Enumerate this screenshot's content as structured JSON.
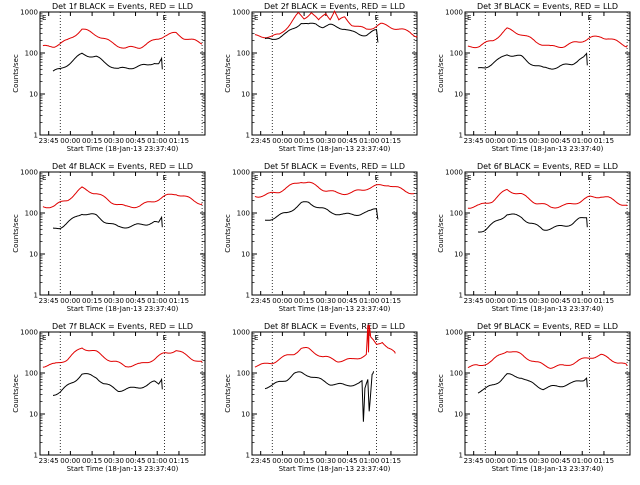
{
  "chart_data": [
    {
      "type": "line",
      "title": "Det 1f BLACK = Events, RED = LLD",
      "xlabel": "Start Time (18-Jan-13 23:37:40)",
      "ylabel": "Counts/sec",
      "yscale": "log",
      "ylim": [
        1,
        1000
      ],
      "yticks": [
        "1",
        "10",
        "100",
        "1000"
      ],
      "xticks": [
        "23:45",
        "00:00",
        "00:15",
        "00:30",
        "00:45",
        "01:00",
        "01:15"
      ],
      "xlim_minutes": [
        -14,
        100
      ],
      "dotted_lines": [
        0,
        72,
        98
      ],
      "marker": "E",
      "series": [
        {
          "color": "#e00000",
          "x": [
            -12,
            -4,
            5,
            15,
            25,
            35,
            45,
            55,
            65,
            72,
            80,
            85,
            92,
            98
          ],
          "y": [
            140,
            150,
            200,
            380,
            280,
            180,
            130,
            140,
            200,
            270,
            300,
            240,
            200,
            170
          ]
        },
        {
          "color": "#000000",
          "x": [
            -5,
            0,
            10,
            15,
            25,
            30,
            40,
            50,
            60,
            65,
            68,
            70,
            70.5
          ],
          "y": [
            35,
            40,
            70,
            95,
            80,
            60,
            40,
            45,
            50,
            60,
            55,
            70,
            40
          ]
        }
      ]
    },
    {
      "type": "line",
      "title": "Det 2f BLACK = Events, RED = LLD",
      "xlabel": "Start Time (18-Jan-13 23:37:40)",
      "ylabel": "Counts/sec",
      "yscale": "log",
      "ylim": [
        1,
        1000
      ],
      "yticks": [
        "1",
        "10",
        "100",
        "1000"
      ],
      "xticks": [
        "23:45",
        "00:00",
        "00:15",
        "00:30",
        "00:45",
        "01:00",
        "01:15"
      ],
      "xlim_minutes": [
        -14,
        100
      ],
      "dotted_lines": [
        0,
        72,
        98
      ],
      "marker": "E",
      "series": [
        {
          "color": "#e00000",
          "x": [
            -12,
            -5,
            0,
            5,
            12,
            18,
            22,
            27,
            32,
            37,
            40,
            43,
            46,
            50,
            55,
            60,
            65,
            70,
            75,
            80,
            88,
            95,
            100
          ],
          "y": [
            260,
            255,
            250,
            280,
            500,
            900,
            700,
            1000,
            600,
            950,
            700,
            1050,
            600,
            750,
            500,
            420,
            380,
            430,
            500,
            450,
            380,
            320,
            260
          ]
        },
        {
          "color": "#000000",
          "x": [
            -5,
            0,
            5,
            10,
            15,
            20,
            25,
            30,
            35,
            40,
            45,
            50,
            55,
            60,
            65,
            70,
            72,
            73
          ],
          "y": [
            210,
            215,
            250,
            300,
            400,
            560,
            480,
            520,
            440,
            470,
            430,
            400,
            320,
            290,
            280,
            330,
            350,
            180
          ]
        }
      ]
    },
    {
      "type": "line",
      "title": "Det 3f BLACK = Events, RED = LLD",
      "xlabel": "Start Time (18-Jan-13 23:37:40)",
      "ylabel": "Counts/sec",
      "yscale": "log",
      "ylim": [
        1,
        1000
      ],
      "yticks": [
        "1",
        "10",
        "100",
        "1000"
      ],
      "xticks": [
        "23:45",
        "00:00",
        "00:15",
        "00:30",
        "00:45",
        "01:00",
        "01:15"
      ],
      "xlim_minutes": [
        -14,
        100
      ],
      "dotted_lines": [
        0,
        72,
        98
      ],
      "marker": "E",
      "series": [
        {
          "color": "#e00000",
          "x": [
            -12,
            -4,
            5,
            15,
            25,
            35,
            45,
            55,
            65,
            72,
            80,
            85,
            92,
            98
          ],
          "y": [
            140,
            150,
            200,
            380,
            290,
            190,
            140,
            150,
            190,
            230,
            250,
            230,
            180,
            150
          ]
        },
        {
          "color": "#000000",
          "x": [
            -5,
            0,
            10,
            15,
            25,
            30,
            40,
            50,
            60,
            65,
            68,
            70,
            70.5
          ],
          "y": [
            40,
            45,
            70,
            95,
            80,
            60,
            42,
            45,
            55,
            70,
            75,
            90,
            50
          ]
        }
      ]
    },
    {
      "type": "line",
      "title": "Det 4f BLACK = Events, RED = LLD",
      "xlabel": "Start Time (18-Jan-13 23:37:40)",
      "ylabel": "Counts/sec",
      "yscale": "log",
      "ylim": [
        1,
        1000
      ],
      "yticks": [
        "1",
        "10",
        "100",
        "1000"
      ],
      "xticks": [
        "23:45",
        "00:00",
        "00:15",
        "00:30",
        "00:45",
        "01:00",
        "01:15"
      ],
      "xlim_minutes": [
        -14,
        100
      ],
      "dotted_lines": [
        0,
        72,
        98
      ],
      "marker": "E",
      "series": [
        {
          "color": "#e00000",
          "x": [
            -12,
            -4,
            5,
            15,
            25,
            35,
            45,
            55,
            65,
            72,
            80,
            85,
            92,
            98
          ],
          "y": [
            140,
            150,
            210,
            400,
            300,
            190,
            140,
            150,
            200,
            250,
            300,
            260,
            200,
            170
          ]
        },
        {
          "color": "#000000",
          "x": [
            -5,
            0,
            10,
            15,
            25,
            30,
            40,
            50,
            60,
            65,
            68,
            70,
            70.5
          ],
          "y": [
            40,
            45,
            75,
            100,
            85,
            65,
            45,
            48,
            55,
            60,
            55,
            75,
            45
          ]
        }
      ]
    },
    {
      "type": "line",
      "title": "Det 5f BLACK = Events, RED = LLD",
      "xlabel": "Start Time (18-Jan-13 23:37:40)",
      "ylabel": "Counts/sec",
      "yscale": "log",
      "ylim": [
        1,
        1000
      ],
      "yticks": [
        "1",
        "10",
        "100",
        "1000"
      ],
      "xticks": [
        "23:45",
        "00:00",
        "00:15",
        "00:30",
        "00:45",
        "01:00",
        "01:15"
      ],
      "xlim_minutes": [
        -14,
        100
      ],
      "dotted_lines": [
        0,
        72,
        98
      ],
      "marker": "E",
      "series": [
        {
          "color": "#e00000",
          "x": [
            -12,
            -5,
            0,
            5,
            15,
            20,
            25,
            35,
            45,
            55,
            60,
            65,
            72,
            80,
            85,
            92,
            98
          ],
          "y": [
            260,
            270,
            300,
            340,
            500,
            600,
            550,
            380,
            300,
            310,
            350,
            400,
            450,
            500,
            420,
            350,
            300
          ]
        },
        {
          "color": "#000000",
          "x": [
            -5,
            0,
            10,
            15,
            20,
            25,
            30,
            40,
            50,
            60,
            65,
            68,
            70,
            72,
            73
          ],
          "y": [
            65,
            75,
            100,
            130,
            170,
            180,
            150,
            105,
            90,
            95,
            100,
            110,
            125,
            135,
            70
          ]
        }
      ]
    },
    {
      "type": "line",
      "title": "Det 6f BLACK = Events, RED = LLD",
      "xlabel": "Start Time (18-Jan-13 23:37:40)",
      "ylabel": "Counts/sec",
      "yscale": "log",
      "ylim": [
        1,
        1000
      ],
      "yticks": [
        "1",
        "10",
        "100",
        "1000"
      ],
      "xticks": [
        "23:45",
        "00:00",
        "00:15",
        "00:30",
        "00:45",
        "01:00",
        "01:15"
      ],
      "xlim_minutes": [
        -14,
        100
      ],
      "dotted_lines": [
        0,
        72,
        98
      ],
      "marker": "E",
      "series": [
        {
          "color": "#e00000",
          "x": [
            -12,
            -4,
            5,
            15,
            25,
            35,
            45,
            55,
            65,
            72,
            80,
            85,
            92,
            98
          ],
          "y": [
            140,
            150,
            200,
            370,
            280,
            180,
            140,
            150,
            190,
            240,
            260,
            230,
            180,
            150
          ]
        },
        {
          "color": "#000000",
          "x": [
            -5,
            0,
            10,
            15,
            25,
            30,
            40,
            50,
            60,
            65,
            68,
            70,
            70.5
          ],
          "y": [
            35,
            40,
            70,
            95,
            80,
            60,
            40,
            45,
            55,
            70,
            75,
            80,
            45
          ]
        }
      ]
    },
    {
      "type": "line",
      "title": "Det 7f BLACK = Events, RED = LLD",
      "xlabel": "Start Time (18-Jan-13 23:37:40)",
      "ylabel": "Counts/sec",
      "yscale": "log",
      "ylim": [
        1,
        1000
      ],
      "yticks": [
        "1",
        "10",
        "100",
        "1000"
      ],
      "xticks": [
        "23:45",
        "00:00",
        "00:15",
        "00:30",
        "00:45",
        "01:00",
        "01:15"
      ],
      "xlim_minutes": [
        -14,
        100
      ],
      "dotted_lines": [
        0,
        72,
        98
      ],
      "marker": "E",
      "series": [
        {
          "color": "#e00000",
          "x": [
            -12,
            -4,
            5,
            15,
            25,
            35,
            45,
            55,
            65,
            72,
            80,
            85,
            92,
            98
          ],
          "y": [
            150,
            160,
            220,
            420,
            320,
            200,
            150,
            160,
            220,
            300,
            360,
            290,
            220,
            180
          ]
        },
        {
          "color": "#000000",
          "x": [
            -5,
            0,
            10,
            15,
            25,
            30,
            40,
            50,
            60,
            65,
            68,
            70,
            70.5
          ],
          "y": [
            30,
            35,
            65,
            95,
            80,
            55,
            38,
            42,
            50,
            60,
            55,
            75,
            40
          ]
        }
      ]
    },
    {
      "type": "line",
      "title": "Det 8f BLACK = Events, RED = LLD",
      "xlabel": "Start Time (18-Jan-13 23:37:40)",
      "ylabel": "Counts/sec",
      "yscale": "log",
      "ylim": [
        1,
        1000
      ],
      "yticks": [
        "1",
        "10",
        "100",
        "1000"
      ],
      "xticks": [
        "23:45",
        "00:00",
        "00:15",
        "00:30",
        "00:45",
        "01:00",
        "01:15"
      ],
      "xlim_minutes": [
        -14,
        100
      ],
      "dotted_lines": [
        0,
        72,
        98
      ],
      "marker": "E",
      "series": [
        {
          "color": "#e00000",
          "x": [
            -12,
            -5,
            0,
            5,
            15,
            20,
            25,
            35,
            45,
            55,
            60,
            65,
            66,
            66.5,
            67,
            68,
            72,
            76,
            80,
            85
          ],
          "y": [
            150,
            160,
            180,
            220,
            300,
            400,
            380,
            250,
            200,
            210,
            240,
            280,
            1400,
            300,
            1400,
            700,
            500,
            600,
            400,
            300
          ]
        },
        {
          "color": "#000000",
          "x": [
            -5,
            0,
            10,
            15,
            20,
            25,
            30,
            40,
            50,
            60,
            62,
            63,
            64,
            66,
            67,
            69,
            70
          ],
          "y": [
            45,
            50,
            70,
            95,
            100,
            90,
            75,
            55,
            50,
            55,
            60,
            6,
            40,
            70,
            12,
            100,
            110
          ]
        }
      ]
    },
    {
      "type": "line",
      "title": "Det 9f BLACK = Events, RED = LLD",
      "xlabel": "Start Time (18-Jan-13 23:37:40)",
      "ylabel": "Counts/sec",
      "yscale": "log",
      "ylim": [
        1,
        1000
      ],
      "yticks": [
        "1",
        "10",
        "100",
        "1000"
      ],
      "xticks": [
        "23:45",
        "00:00",
        "00:15",
        "00:30",
        "00:45",
        "01:00",
        "01:15"
      ],
      "xlim_minutes": [
        -14,
        100
      ],
      "dotted_lines": [
        0,
        72,
        98
      ],
      "marker": "E",
      "series": [
        {
          "color": "#e00000",
          "x": [
            -12,
            -4,
            5,
            15,
            25,
            35,
            45,
            55,
            65,
            72,
            80,
            85,
            92,
            98
          ],
          "y": [
            140,
            150,
            200,
            360,
            280,
            180,
            140,
            150,
            200,
            240,
            270,
            230,
            180,
            150
          ]
        },
        {
          "color": "#000000",
          "x": [
            -5,
            0,
            10,
            15,
            25,
            30,
            40,
            50,
            60,
            65,
            68,
            70,
            70.5
          ],
          "y": [
            35,
            40,
            65,
            90,
            80,
            60,
            42,
            48,
            55,
            65,
            70,
            80,
            45
          ]
        }
      ]
    }
  ]
}
